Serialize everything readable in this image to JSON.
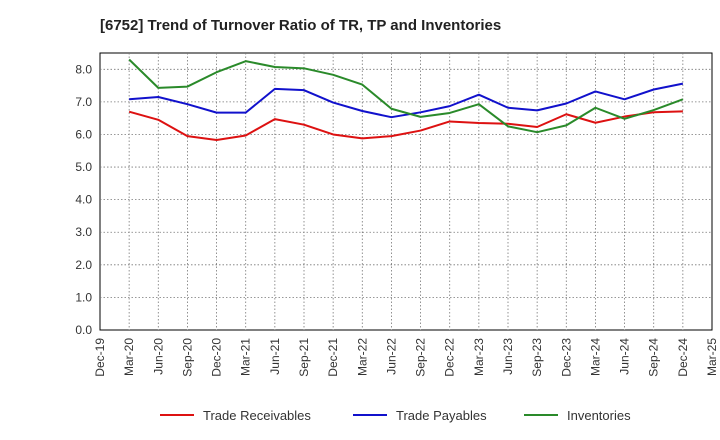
{
  "chart_data": {
    "type": "line",
    "title": "[6752]  Trend of Turnover Ratio of TR, TP and Inventories",
    "xlabel": "",
    "ylabel": "",
    "ylim": [
      0.0,
      8.5
    ],
    "yticks": [
      "0.0",
      "1.0",
      "2.0",
      "3.0",
      "4.0",
      "5.0",
      "6.0",
      "7.0",
      "8.0"
    ],
    "x_tick_labels": [
      "Dec-19",
      "Mar-20",
      "Jun-20",
      "Sep-20",
      "Dec-20",
      "Mar-21",
      "Jun-21",
      "Sep-21",
      "Dec-21",
      "Mar-22",
      "Jun-22",
      "Sep-22",
      "Dec-22",
      "Mar-23",
      "Jun-23",
      "Sep-23",
      "Dec-23",
      "Mar-24",
      "Jun-24",
      "Sep-24",
      "Dec-24",
      "Mar-25"
    ],
    "x": [
      "Mar-20",
      "Jun-20",
      "Sep-20",
      "Dec-20",
      "Mar-21",
      "Jun-21",
      "Sep-21",
      "Dec-21",
      "Mar-22",
      "Jun-22",
      "Sep-22",
      "Dec-22",
      "Mar-23",
      "Jun-23",
      "Sep-23",
      "Dec-23",
      "Mar-24",
      "Jun-24",
      "Sep-24",
      "Dec-24"
    ],
    "grid": true,
    "legend_position": "bottom",
    "series": [
      {
        "name": "Trade Receivables",
        "color": "#dd1111",
        "values": [
          6.7,
          6.45,
          5.95,
          5.83,
          5.97,
          6.47,
          6.3,
          6.0,
          5.88,
          5.95,
          6.12,
          6.4,
          6.35,
          6.33,
          6.23,
          6.62,
          6.36,
          6.55,
          6.68,
          6.71
        ]
      },
      {
        "name": "Trade Payables",
        "color": "#1111cc",
        "values": [
          7.08,
          7.15,
          6.93,
          6.67,
          6.67,
          7.4,
          7.36,
          6.98,
          6.72,
          6.53,
          6.68,
          6.87,
          7.22,
          6.82,
          6.74,
          6.95,
          7.32,
          7.08,
          7.38,
          7.56
        ]
      },
      {
        "name": "Inventories",
        "color": "#2a8a2a",
        "values": [
          8.3,
          7.43,
          7.47,
          7.91,
          8.25,
          8.07,
          8.03,
          7.83,
          7.53,
          6.79,
          6.54,
          6.66,
          6.93,
          6.25,
          6.07,
          6.28,
          6.82,
          6.48,
          6.75,
          7.08
        ]
      }
    ]
  }
}
